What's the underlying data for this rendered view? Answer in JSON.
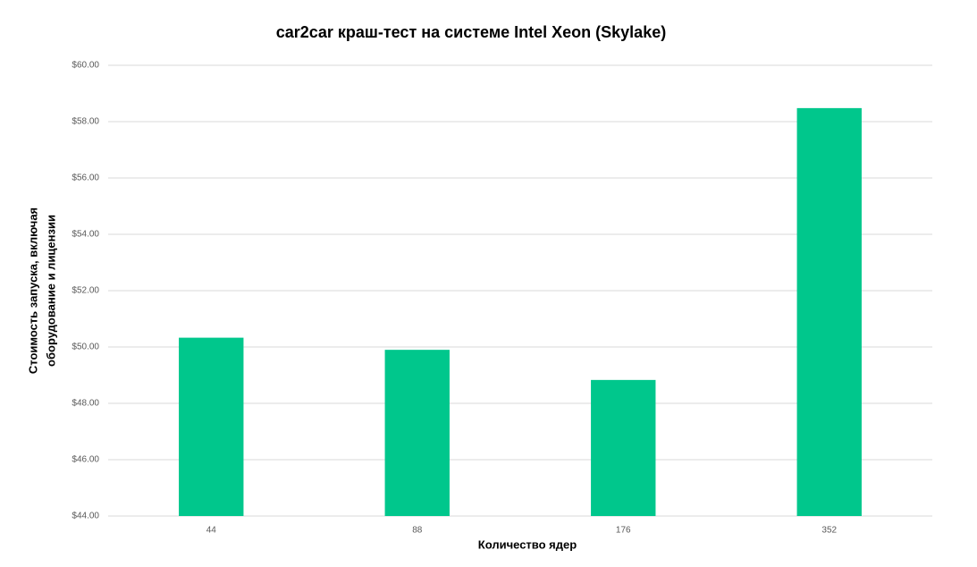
{
  "chart_data": {
    "type": "bar",
    "title": "car2car краш-тест на системе Intel Xeon (Skylake)",
    "xlabel": "Количество ядер",
    "ylabel": [
      "Стоимость запуска, включая",
      "оборудование и лицензии"
    ],
    "categories": [
      "44",
      "88",
      "176",
      "352"
    ],
    "values": [
      50.33,
      49.9,
      48.83,
      58.48
    ],
    "color": "#00c78c",
    "ylim": [
      44,
      60
    ],
    "yticks": [
      {
        "value": 44,
        "label": "$44.00"
      },
      {
        "value": 46,
        "label": "$46.00"
      },
      {
        "value": 48,
        "label": "$48.00"
      },
      {
        "value": 50,
        "label": "$50.00"
      },
      {
        "value": 52,
        "label": "$52.00"
      },
      {
        "value": 54,
        "label": "$54.00"
      },
      {
        "value": 56,
        "label": "$56.00"
      },
      {
        "value": 58,
        "label": "$58.00"
      },
      {
        "value": 60,
        "label": "$60.00"
      }
    ],
    "grid": true
  }
}
